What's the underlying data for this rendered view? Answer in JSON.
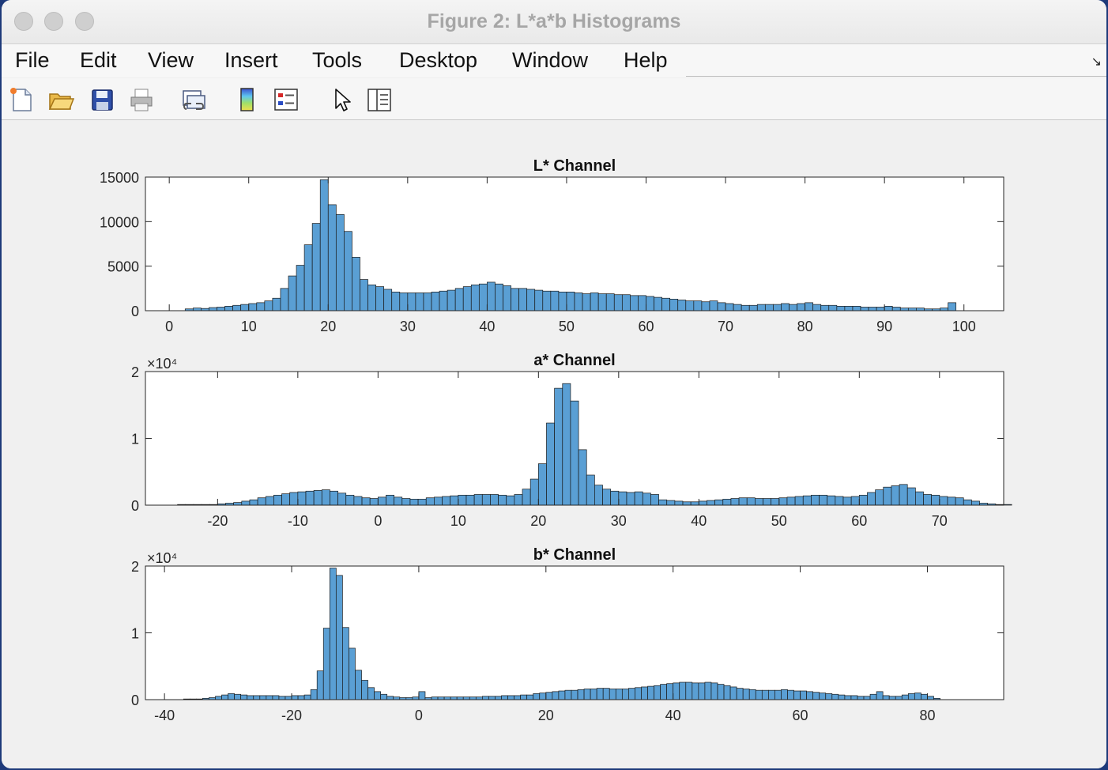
{
  "window": {
    "title": "Figure 2: L*a*b Histograms"
  },
  "menu": [
    "File",
    "Edit",
    "View",
    "Insert",
    "Tools",
    "Desktop",
    "Window",
    "Help"
  ],
  "toolbar": [
    {
      "name": "new-figure-icon"
    },
    {
      "name": "open-file-icon"
    },
    {
      "name": "save-icon"
    },
    {
      "name": "print-icon"
    },
    {
      "name": "link-plot-icon"
    },
    {
      "name": "colorbar-icon"
    },
    {
      "name": "legend-icon"
    },
    {
      "name": "edit-plot-arrow-icon"
    },
    {
      "name": "property-inspector-icon"
    }
  ],
  "colors": {
    "bar_fill": "#5a9fd4",
    "bar_edge": "#1a1a1a"
  },
  "chart_data": [
    {
      "type": "bar",
      "title": "L* Channel",
      "xlim": [
        -3,
        105
      ],
      "ylim": [
        0,
        15000
      ],
      "xticks": [
        "0",
        "10",
        "20",
        "30",
        "40",
        "50",
        "60",
        "70",
        "80",
        "90",
        "100"
      ],
      "yticks": [
        "0",
        "5000",
        "10000",
        "15000"
      ],
      "exponent_label": "",
      "bin_width": 1,
      "x_start": 2,
      "values": [
        200,
        300,
        250,
        350,
        400,
        500,
        600,
        700,
        800,
        900,
        1100,
        1400,
        2500,
        3900,
        5100,
        7400,
        9800,
        14700,
        11900,
        10800,
        8900,
        6000,
        3500,
        2900,
        2700,
        2400,
        2100,
        2000,
        2000,
        2000,
        2000,
        2100,
        2200,
        2300,
        2500,
        2700,
        2900,
        3000,
        3200,
        3000,
        2800,
        2500,
        2500,
        2400,
        2300,
        2200,
        2200,
        2100,
        2100,
        2000,
        1900,
        2000,
        1900,
        1900,
        1800,
        1800,
        1700,
        1700,
        1600,
        1500,
        1400,
        1300,
        1200,
        1100,
        1100,
        1000,
        1100,
        900,
        800,
        700,
        600,
        600,
        700,
        700,
        700,
        800,
        700,
        800,
        900,
        700,
        600,
        600,
        500,
        500,
        500,
        400,
        400,
        400,
        500,
        400,
        300,
        300,
        300,
        200,
        200,
        300,
        900
      ]
    },
    {
      "type": "bar",
      "title": "a* Channel",
      "xlim": [
        -29,
        78
      ],
      "ylim": [
        0,
        20000
      ],
      "xticks": [
        "-20",
        "-10",
        "0",
        "10",
        "20",
        "30",
        "40",
        "50",
        "60",
        "70"
      ],
      "yticks": [
        "0",
        "1",
        "2"
      ],
      "exponent_label": "×10⁴",
      "bin_width": 1,
      "x_start": -25,
      "values": [
        100,
        100,
        100,
        100,
        100,
        200,
        300,
        400,
        600,
        800,
        1100,
        1300,
        1500,
        1700,
        1900,
        2000,
        2100,
        2200,
        2300,
        2100,
        1800,
        1500,
        1300,
        1100,
        1000,
        1200,
        1500,
        1200,
        1000,
        900,
        900,
        1100,
        1200,
        1300,
        1400,
        1500,
        1500,
        1600,
        1600,
        1600,
        1500,
        1400,
        1600,
        2400,
        3900,
        6200,
        12300,
        17500,
        18200,
        15600,
        8300,
        4500,
        3000,
        2400,
        2100,
        2000,
        1900,
        2000,
        1800,
        1600,
        800,
        700,
        600,
        500,
        500,
        600,
        700,
        800,
        900,
        1000,
        1100,
        1100,
        1000,
        1000,
        1000,
        1100,
        1200,
        1300,
        1400,
        1500,
        1500,
        1400,
        1300,
        1200,
        1300,
        1500,
        1900,
        2300,
        2700,
        2900,
        3100,
        2600,
        2000,
        1600,
        1500,
        1300,
        1200,
        1100,
        800,
        600,
        300,
        200,
        100,
        100
      ]
    },
    {
      "type": "bar",
      "title": "b* Channel",
      "xlim": [
        -43,
        92
      ],
      "ylim": [
        0,
        20000
      ],
      "xticks": [
        "-40",
        "-20",
        "0",
        "20",
        "40",
        "60",
        "80"
      ],
      "yticks": [
        "0",
        "1",
        "2"
      ],
      "exponent_label": "×10⁴",
      "bin_width": 1,
      "x_start": -37,
      "values": [
        100,
        100,
        100,
        200,
        300,
        500,
        700,
        900,
        800,
        700,
        600,
        600,
        600,
        600,
        600,
        500,
        500,
        600,
        600,
        700,
        1500,
        4300,
        10700,
        19700,
        18600,
        10800,
        7700,
        4400,
        2900,
        1800,
        1200,
        800,
        500,
        400,
        300,
        300,
        400,
        1200,
        300,
        400,
        400,
        400,
        400,
        400,
        400,
        400,
        400,
        500,
        500,
        500,
        600,
        600,
        600,
        700,
        700,
        900,
        1000,
        1100,
        1200,
        1300,
        1400,
        1400,
        1500,
        1600,
        1600,
        1700,
        1700,
        1600,
        1600,
        1600,
        1700,
        1800,
        1900,
        2000,
        2100,
        2300,
        2400,
        2500,
        2600,
        2600,
        2500,
        2500,
        2600,
        2500,
        2300,
        2100,
        1900,
        1700,
        1600,
        1500,
        1400,
        1400,
        1400,
        1400,
        1500,
        1400,
        1300,
        1300,
        1200,
        1100,
        1000,
        900,
        800,
        700,
        600,
        600,
        500,
        500,
        800,
        1200,
        600,
        500,
        500,
        700,
        900,
        1000,
        800,
        500,
        200
      ]
    }
  ]
}
